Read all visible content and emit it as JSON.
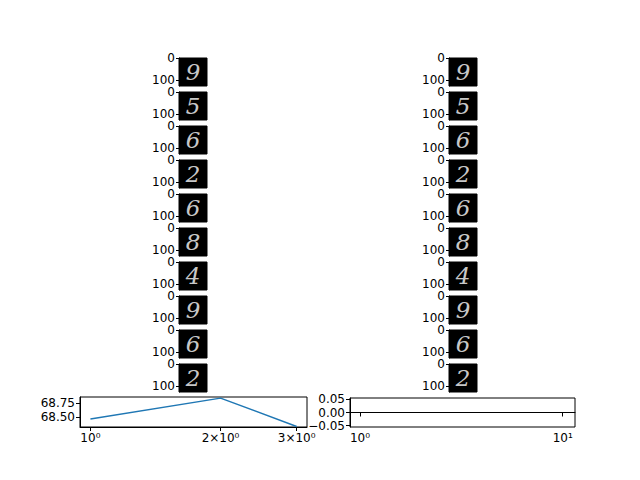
{
  "chart_data": [
    {
      "type": "image_grid",
      "images": [
        "9",
        "5",
        "6",
        "2",
        "6",
        "8",
        "4",
        "9",
        "6",
        "2"
      ],
      "ylim": [
        0,
        128
      ],
      "yticks": [
        0,
        100
      ],
      "tick_labels": "y"
    },
    {
      "type": "image_grid",
      "images": [
        "9",
        "5",
        "6",
        "2",
        "6",
        "8",
        "4",
        "9",
        "6",
        "2"
      ],
      "ylim": [
        0,
        128
      ],
      "yticks": [
        0,
        100
      ],
      "tick_labels": "y"
    },
    {
      "type": "line",
      "log": "x",
      "color": "#1f77b4",
      "x": [
        1,
        2,
        3
      ],
      "values": [
        68.47,
        68.84,
        68.34
      ],
      "xlim": [
        0.946,
        3.17
      ],
      "xticks": [
        {
          "value": 1,
          "label": "10⁰"
        },
        {
          "value": 2,
          "label": "2×10⁰"
        },
        {
          "value": 3,
          "label": "3×10⁰"
        }
      ],
      "ylim": [
        68.33,
        68.86
      ],
      "yticks": [
        {
          "value": 68.5,
          "label": "68.50"
        },
        {
          "value": 68.75,
          "label": "68.75"
        }
      ]
    },
    {
      "type": "line",
      "log": "x",
      "x": [],
      "values": [],
      "xlim": [
        0.893,
        11.5
      ],
      "xticks": [
        {
          "value": 1,
          "label": "10⁰"
        },
        {
          "value": 10,
          "label": "10¹"
        }
      ],
      "ylim": [
        -0.055,
        0.055
      ],
      "yticks": [
        {
          "value": -0.05,
          "label": "−0.05"
        },
        {
          "value": 0,
          "label": "0.00"
        },
        {
          "value": 0.05,
          "label": "0.05"
        }
      ]
    }
  ]
}
